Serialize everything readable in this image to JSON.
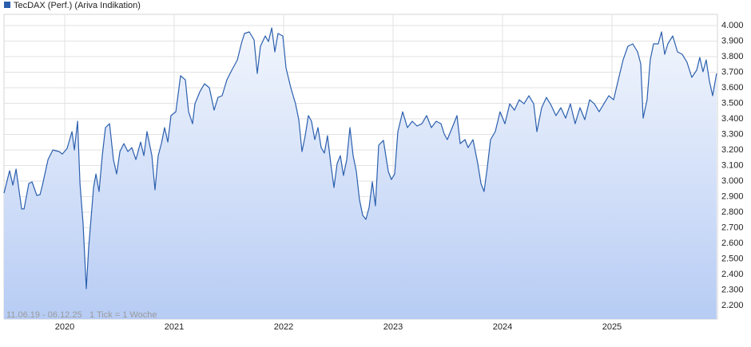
{
  "chart_data": {
    "type": "line",
    "xlim": [
      2019.445,
      2025.964
    ],
    "xticks": [
      2020,
      2021,
      2022,
      2023,
      2024,
      2025
    ],
    "ylim": [
      2113,
      4072
    ],
    "yticks": [
      {
        "value": 2200,
        "label": "2.200"
      },
      {
        "value": 2300,
        "label": "2.300"
      },
      {
        "value": 2400,
        "label": "2.400"
      },
      {
        "value": 2500,
        "label": "2.500"
      },
      {
        "value": 2600,
        "label": "2.600"
      },
      {
        "value": 2700,
        "label": "2.700"
      },
      {
        "value": 2800,
        "label": "2.800"
      },
      {
        "value": 2900,
        "label": "2.900"
      },
      {
        "value": 3000,
        "label": "3.000"
      },
      {
        "value": 3100,
        "label": "3.100"
      },
      {
        "value": 3200,
        "label": "3.200"
      },
      {
        "value": 3300,
        "label": "3.300"
      },
      {
        "value": 3400,
        "label": "3.400"
      },
      {
        "value": 3500,
        "label": "3.500"
      },
      {
        "value": 3600,
        "label": "3.600"
      },
      {
        "value": 3700,
        "label": "3.700"
      },
      {
        "value": 3800,
        "label": "3.800"
      },
      {
        "value": 3900,
        "label": "3.900"
      },
      {
        "value": 4000,
        "label": "4.000"
      }
    ],
    "grid": true,
    "date_range": "11.06.19 - 06.12.25",
    "tick_note": "1 Tick = 1 Woche",
    "x": [
      2019.445,
      2019.496,
      2019.526,
      2019.555,
      2019.606,
      2019.628,
      2019.672,
      2019.701,
      2019.745,
      2019.774,
      2019.796,
      2019.847,
      2019.891,
      2019.949,
      2019.978,
      2020.022,
      2020.066,
      2020.088,
      2020.117,
      2020.139,
      2020.168,
      2020.197,
      2020.219,
      2020.263,
      2020.285,
      2020.314,
      2020.343,
      2020.372,
      2020.409,
      2020.445,
      2020.474,
      2020.504,
      2020.54,
      2020.577,
      2020.613,
      2020.65,
      2020.693,
      2020.723,
      2020.752,
      2020.796,
      2020.825,
      2020.854,
      2020.883,
      2020.912,
      2020.942,
      2020.971,
      2021.015,
      2021.058,
      2021.102,
      2021.131,
      2021.168,
      2021.19,
      2021.234,
      2021.277,
      2021.321,
      2021.365,
      2021.401,
      2021.438,
      2021.482,
      2021.526,
      2021.577,
      2021.613,
      2021.642,
      2021.686,
      2021.73,
      2021.759,
      2021.788,
      2021.832,
      2021.861,
      2021.891,
      2021.92,
      2021.949,
      2021.993,
      2022.022,
      2022.066,
      2022.109,
      2022.139,
      2022.168,
      2022.197,
      2022.226,
      2022.255,
      2022.285,
      2022.314,
      2022.343,
      2022.372,
      2022.401,
      2022.431,
      2022.46,
      2022.489,
      2022.518,
      2022.547,
      2022.577,
      2022.606,
      2022.635,
      2022.664,
      2022.693,
      2022.723,
      2022.752,
      2022.781,
      2022.81,
      2022.839,
      2022.869,
      2022.912,
      2022.956,
      2022.985,
      2023.015,
      2023.044,
      2023.088,
      2023.131,
      2023.175,
      2023.219,
      2023.263,
      2023.307,
      2023.35,
      2023.394,
      2023.438,
      2023.467,
      2023.496,
      2023.54,
      2023.584,
      2023.613,
      2023.657,
      2023.686,
      2023.73,
      2023.774,
      2023.803,
      2023.832,
      2023.861,
      2023.891,
      2023.934,
      2023.978,
      2024.022,
      2024.066,
      2024.109,
      2024.153,
      2024.197,
      2024.241,
      2024.285,
      2024.314,
      2024.358,
      2024.401,
      2024.445,
      2024.489,
      2024.533,
      2024.577,
      2024.62,
      2024.664,
      2024.708,
      2024.752,
      2024.796,
      2024.839,
      2024.883,
      2024.927,
      2024.971,
      2025.015,
      2025.058,
      2025.102,
      2025.146,
      2025.19,
      2025.234,
      2025.263,
      2025.285,
      2025.321,
      2025.35,
      2025.38,
      2025.423,
      2025.453,
      2025.482,
      2025.511,
      2025.555,
      2025.599,
      2025.642,
      2025.686,
      2025.73,
      2025.774,
      2025.803,
      2025.832,
      2025.861,
      2025.891,
      2025.92,
      2025.956
    ],
    "series": [
      {
        "name": "TecDAX (Perf.) (Ariva Indikation)",
        "color": "#2b5fae",
        "values": [
          2923,
          3067,
          2974,
          3077,
          2821,
          2821,
          2985,
          2995,
          2908,
          2913,
          2974,
          3138,
          3200,
          3190,
          3174,
          3210,
          3318,
          3200,
          3385,
          2985,
          2728,
          2308,
          2574,
          2959,
          3046,
          2933,
          3164,
          3344,
          3369,
          3138,
          3046,
          3190,
          3241,
          3190,
          3215,
          3138,
          3251,
          3164,
          3318,
          3164,
          2944,
          3164,
          3241,
          3344,
          3251,
          3421,
          3446,
          3677,
          3651,
          3446,
          3369,
          3497,
          3574,
          3626,
          3600,
          3456,
          3538,
          3549,
          3651,
          3713,
          3779,
          3882,
          3949,
          3959,
          3908,
          3692,
          3867,
          3933,
          3897,
          3985,
          3831,
          3949,
          3933,
          3728,
          3600,
          3497,
          3395,
          3190,
          3292,
          3421,
          3385,
          3267,
          3344,
          3215,
          3180,
          3292,
          3113,
          2959,
          3113,
          3164,
          3036,
          3138,
          3344,
          3164,
          3062,
          2882,
          2780,
          2754,
          2831,
          2995,
          2841,
          3231,
          3262,
          3062,
          3010,
          3046,
          3318,
          3446,
          3344,
          3385,
          3354,
          3369,
          3421,
          3344,
          3385,
          3369,
          3303,
          3267,
          3344,
          3421,
          3241,
          3267,
          3215,
          3267,
          3113,
          2985,
          2933,
          3087,
          3267,
          3318,
          3446,
          3369,
          3497,
          3456,
          3523,
          3497,
          3549,
          3497,
          3318,
          3472,
          3538,
          3487,
          3421,
          3472,
          3405,
          3497,
          3369,
          3472,
          3395,
          3523,
          3497,
          3446,
          3497,
          3549,
          3523,
          3651,
          3779,
          3867,
          3882,
          3831,
          3754,
          3405,
          3523,
          3779,
          3882,
          3882,
          3959,
          3815,
          3882,
          3933,
          3831,
          3815,
          3764,
          3667,
          3713,
          3795,
          3703,
          3779,
          3641,
          3549,
          3692
        ]
      }
    ]
  }
}
